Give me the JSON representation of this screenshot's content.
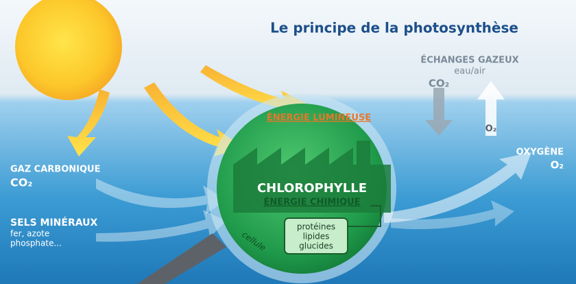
{
  "header": {
    "title": "Le principe de la photosynthèse"
  },
  "exchanges": {
    "title": "ÉCHANGES GAZEUX",
    "subtitle": "eau/air",
    "co2": "CO₂",
    "o2": "O₂"
  },
  "light_energy": "ÉNERGIE LUMINEUSE",
  "output": {
    "label": "OXYGÈNE",
    "formula": "O₂"
  },
  "inputs": [
    {
      "label": "GAZ CARBONIQUE",
      "formula": "CO₂"
    },
    {
      "label": "SELS MINÉRAUX",
      "details": [
        "fer, azote",
        "phosphate..."
      ]
    }
  ],
  "cell": {
    "chlorophyll": "CHLOROPHYLLE",
    "energy": "ÉNERGIE CHIMIQUE",
    "products": [
      "protéines",
      "lipides",
      "glucides"
    ],
    "label": "cellule"
  }
}
